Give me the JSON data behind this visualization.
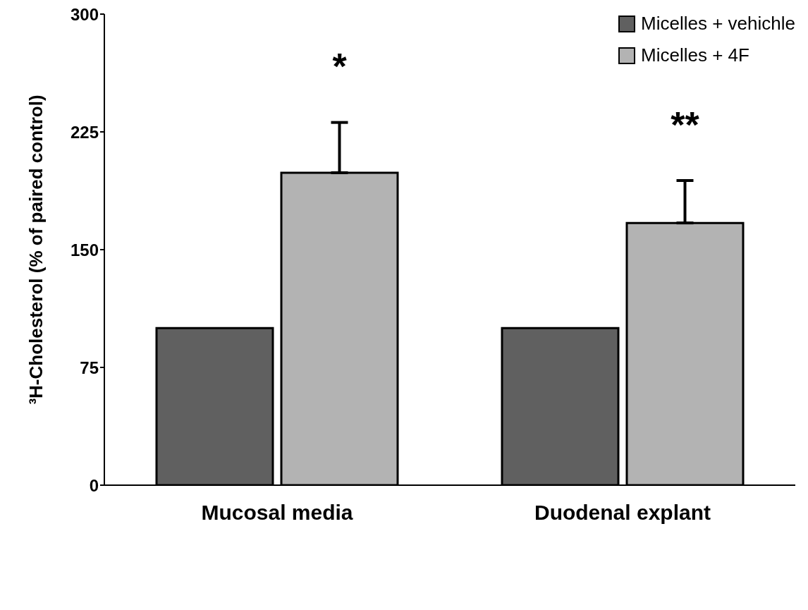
{
  "chart_data": {
    "type": "bar",
    "ylabel": "³H-Cholesterol (% of paired control)",
    "categories": [
      "Mucosal media",
      "Duodenal explant"
    ],
    "series": [
      {
        "name": "Micelles + vehichle",
        "color": "#606060",
        "values": [
          100,
          100
        ]
      },
      {
        "name": "Micelles + 4F",
        "color": "#b3b3b3",
        "values": [
          199,
          167
        ],
        "errors": [
          [
            199,
            231
          ],
          [
            167,
            194
          ]
        ]
      }
    ],
    "ylim": [
      0,
      300
    ],
    "yticks": [
      0,
      75,
      150,
      225,
      300
    ],
    "grid": false,
    "legend": "top right",
    "annotations": [
      "*",
      "**"
    ]
  }
}
